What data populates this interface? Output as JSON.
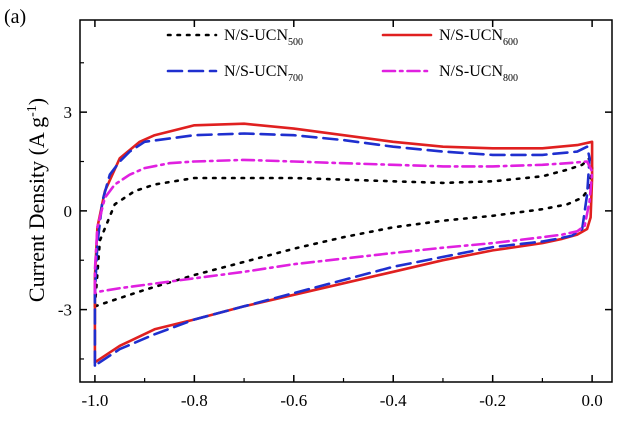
{
  "chart_data": {
    "type": "line",
    "panel_label": "(a)",
    "xlabel": "",
    "ylabel_main": "Current Density (A g",
    "ylabel_sup": "-1",
    "ylabel_end": ")",
    "xlim": [
      -1.03,
      0.04
    ],
    "ylim": [
      -5.2,
      5.8
    ],
    "x_ticks": [
      -1.0,
      -0.8,
      -0.6,
      -0.4,
      -0.2,
      0.0
    ],
    "x_tick_labels": [
      "-1.0",
      "-0.8",
      "-0.6",
      "-0.4",
      "-0.2",
      "0.0"
    ],
    "y_ticks": [
      -3,
      0,
      3
    ],
    "y_tick_labels": [
      "-3",
      "0",
      "3"
    ],
    "legend": [
      {
        "base": "N/S-UCN",
        "sub": "500",
        "color": "#000000",
        "dash": "dot"
      },
      {
        "base": "N/S-UCN",
        "sub": "600",
        "color": "#e02020",
        "dash": "solid"
      },
      {
        "base": "N/S-UCN",
        "sub": "700",
        "color": "#1f2fcf",
        "dash": "dash"
      },
      {
        "base": "N/S-UCN",
        "sub": "800",
        "color": "#e020e0",
        "dash": "dashdot"
      }
    ],
    "series": [
      {
        "name": "N/S-UCN500",
        "color": "#000000",
        "dash": "dot",
        "x": [
          -1.0,
          -0.99,
          -0.96,
          -0.92,
          -0.88,
          -0.8,
          -0.7,
          -0.6,
          -0.5,
          -0.4,
          -0.3,
          -0.2,
          -0.1,
          -0.05,
          -0.02,
          -0.005,
          0.0,
          -0.005,
          -0.02,
          -0.05,
          -0.1,
          -0.2,
          -0.3,
          -0.4,
          -0.5,
          -0.6,
          -0.7,
          -0.8,
          -0.9,
          -0.95,
          -0.99,
          -1.0,
          -1.0
        ],
        "y": [
          -2.9,
          -0.9,
          0.2,
          0.6,
          0.8,
          1.0,
          1.0,
          1.0,
          0.95,
          0.9,
          0.85,
          0.9,
          1.05,
          1.25,
          1.4,
          1.6,
          1.3,
          0.7,
          0.4,
          0.2,
          0.05,
          -0.15,
          -0.3,
          -0.5,
          -0.8,
          -1.15,
          -1.55,
          -1.95,
          -2.4,
          -2.65,
          -2.85,
          -2.9,
          -2.9
        ]
      },
      {
        "name": "N/S-UCN600",
        "color": "#e02020",
        "dash": "solid",
        "x": [
          -1.0,
          -1.0,
          -0.995,
          -0.98,
          -0.95,
          -0.91,
          -0.88,
          -0.8,
          -0.7,
          -0.6,
          -0.5,
          -0.4,
          -0.3,
          -0.2,
          -0.1,
          -0.03,
          0.0,
          0.0,
          -0.003,
          -0.01,
          -0.03,
          -0.06,
          -0.1,
          -0.2,
          -0.3,
          -0.4,
          -0.5,
          -0.6,
          -0.7,
          -0.8,
          -0.88,
          -0.95,
          -1.0,
          -1.0
        ],
        "y": [
          -4.6,
          -2.0,
          -0.5,
          0.6,
          1.6,
          2.1,
          2.3,
          2.6,
          2.65,
          2.5,
          2.3,
          2.1,
          1.95,
          1.9,
          1.9,
          2.0,
          2.1,
          1.0,
          -0.2,
          -0.55,
          -0.72,
          -0.85,
          -0.98,
          -1.2,
          -1.5,
          -1.85,
          -2.2,
          -2.55,
          -2.9,
          -3.3,
          -3.6,
          -4.1,
          -4.6,
          -4.6
        ]
      },
      {
        "name": "N/S-UCN700",
        "color": "#1f2fcf",
        "dash": "dash",
        "x": [
          -1.0,
          -1.0,
          -0.995,
          -0.985,
          -0.97,
          -0.95,
          -0.93,
          -0.9,
          -0.8,
          -0.7,
          -0.6,
          -0.5,
          -0.4,
          -0.3,
          -0.2,
          -0.1,
          -0.03,
          -0.01,
          -0.005,
          -0.01,
          -0.02,
          -0.04,
          -0.07,
          -0.1,
          -0.2,
          -0.3,
          -0.4,
          -0.5,
          -0.6,
          -0.7,
          -0.8,
          -0.88,
          -0.95,
          -1.0
        ],
        "y": [
          -4.7,
          -2.5,
          -1.0,
          0.3,
          1.1,
          1.5,
          1.8,
          2.1,
          2.3,
          2.35,
          2.3,
          2.15,
          1.95,
          1.8,
          1.7,
          1.7,
          1.8,
          1.95,
          1.6,
          0.5,
          -0.55,
          -0.75,
          -0.85,
          -0.93,
          -1.1,
          -1.4,
          -1.7,
          -2.1,
          -2.5,
          -2.9,
          -3.3,
          -3.75,
          -4.2,
          -4.7
        ]
      },
      {
        "name": "N/S-UCN800",
        "color": "#e020e0",
        "dash": "dashdot",
        "x": [
          -1.0,
          -1.0,
          -0.995,
          -0.98,
          -0.96,
          -0.93,
          -0.9,
          -0.85,
          -0.8,
          -0.7,
          -0.6,
          -0.5,
          -0.4,
          -0.3,
          -0.2,
          -0.1,
          -0.05,
          -0.01,
          0.0,
          -0.005,
          -0.015,
          -0.03,
          -0.06,
          -0.1,
          -0.2,
          -0.3,
          -0.4,
          -0.5,
          -0.6,
          -0.7,
          -0.8,
          -0.9,
          -0.95,
          -0.99,
          -1.0
        ],
        "y": [
          -2.5,
          -1.8,
          -0.5,
          0.4,
          0.8,
          1.1,
          1.3,
          1.45,
          1.5,
          1.55,
          1.5,
          1.45,
          1.4,
          1.35,
          1.35,
          1.4,
          1.45,
          1.5,
          1.2,
          0.3,
          -0.45,
          -0.62,
          -0.72,
          -0.8,
          -0.98,
          -1.12,
          -1.28,
          -1.45,
          -1.62,
          -1.85,
          -2.05,
          -2.25,
          -2.35,
          -2.45,
          -2.5
        ]
      }
    ]
  }
}
